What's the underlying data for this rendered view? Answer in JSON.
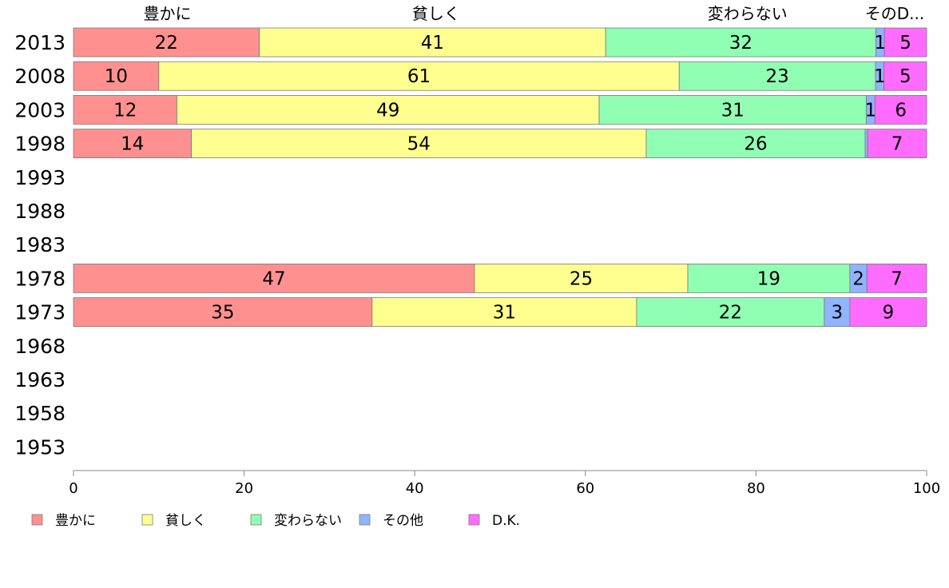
{
  "chart_data": {
    "type": "bar",
    "orientation": "horizontal",
    "stacked": true,
    "categories": [
      "2013",
      "2008",
      "2003",
      "1998",
      "1993",
      "1988",
      "1983",
      "1978",
      "1973",
      "1968",
      "1963",
      "1958",
      "1953"
    ],
    "series": [
      {
        "name": "豊かに",
        "color": "#ff9090",
        "values": [
          22,
          10,
          12,
          14,
          null,
          null,
          null,
          47,
          35,
          null,
          null,
          null,
          null
        ]
      },
      {
        "name": "貧しく",
        "color": "#ffff90",
        "values": [
          41,
          61,
          49,
          54,
          null,
          null,
          null,
          25,
          31,
          null,
          null,
          null,
          null
        ]
      },
      {
        "name": "変わらない",
        "color": "#90ffb4",
        "values": [
          32,
          23,
          31,
          26,
          null,
          null,
          null,
          19,
          22,
          null,
          null,
          null,
          null
        ]
      },
      {
        "name": "その他",
        "color": "#90b4ff",
        "values": [
          1,
          1,
          1,
          0.3,
          null,
          null,
          null,
          2,
          3,
          null,
          null,
          null,
          null
        ]
      },
      {
        "name": "D.K.",
        "color": "#ff6cff",
        "values": [
          5,
          5,
          6,
          7,
          null,
          null,
          null,
          7,
          9,
          null,
          null,
          null,
          null
        ]
      }
    ],
    "data_labels": [
      [
        "22",
        "41",
        "32",
        "1",
        "5"
      ],
      [
        "10",
        "61",
        "23",
        "1",
        "5"
      ],
      [
        "12",
        "49",
        "31",
        "1",
        "6"
      ],
      [
        "14",
        "54",
        "26",
        "",
        "7"
      ],
      null,
      null,
      null,
      [
        "47",
        "25",
        "19",
        "2",
        "7"
      ],
      [
        "35",
        "31",
        "22",
        "3",
        "9"
      ],
      null,
      null,
      null,
      null
    ],
    "top_labels": [
      "豊かに",
      "貧しく",
      "変わらない",
      "そのD..."
    ],
    "xlim": [
      0,
      100
    ],
    "xticks": [
      0,
      20,
      40,
      60,
      80,
      100
    ],
    "legend": {
      "position": "bottom",
      "entries": [
        "豊かに",
        "貧しく",
        "変わらない",
        "その他",
        "D.K."
      ]
    },
    "grid": false
  }
}
